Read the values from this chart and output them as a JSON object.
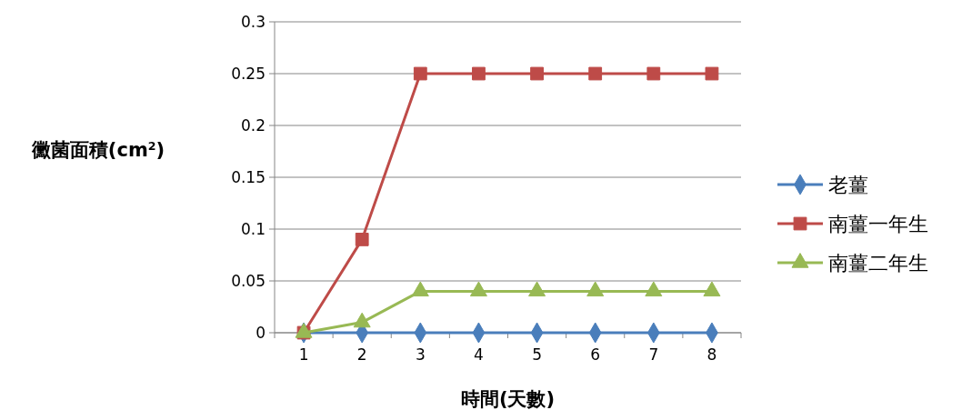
{
  "chart_data": {
    "type": "line",
    "xlabel": "時間(天數)",
    "ylabel": "黴菌面積(cm$^{2}$)",
    "categories": [
      "1",
      "2",
      "3",
      "4",
      "5",
      "6",
      "7",
      "8"
    ],
    "series": [
      {
        "name": "老薑",
        "color": "#4a7ebb",
        "marker": "diamond",
        "values": [
          0,
          0,
          0,
          0,
          0,
          0,
          0,
          0
        ]
      },
      {
        "name": "南薑一年生",
        "color": "#be4b48",
        "marker": "square",
        "values": [
          0,
          0.09,
          0.25,
          0.25,
          0.25,
          0.25,
          0.25,
          0.25
        ]
      },
      {
        "name": "南薑二年生",
        "color": "#98b954",
        "marker": "triangle",
        "values": [
          0,
          0.01,
          0.04,
          0.04,
          0.04,
          0.04,
          0.04,
          0.04
        ]
      }
    ],
    "ylim": [
      0,
      0.3
    ],
    "yticks": [
      0,
      0.05,
      0.1,
      0.15,
      0.2,
      0.25,
      0.3
    ],
    "grid": "y",
    "legend": "right"
  }
}
